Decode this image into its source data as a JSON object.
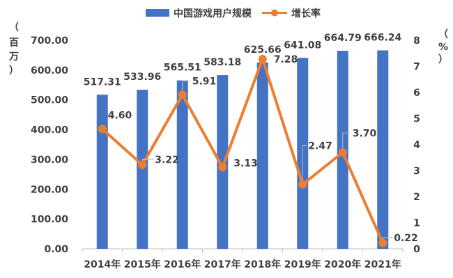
{
  "chart_data": {
    "type": "bar+line",
    "categories": [
      "2014年",
      "2015年",
      "2016年",
      "2017年",
      "2018年",
      "2019年",
      "2020年",
      "2021年"
    ],
    "series": [
      {
        "name": "中国游戏用户规模",
        "kind": "bar",
        "axis": "left",
        "color": "#4472C4",
        "values": [
          517.31,
          533.96,
          565.51,
          583.18,
          625.66,
          641.08,
          664.79,
          666.24
        ],
        "labels": [
          "517.31",
          "533.96",
          "565.51",
          "583.18",
          "625.66",
          "641.08",
          "664.79",
          "666.24"
        ]
      },
      {
        "name": "增长率",
        "kind": "line",
        "axis": "right",
        "color": "#ED7D31",
        "values": [
          4.6,
          3.22,
          5.91,
          3.13,
          7.28,
          2.47,
          3.7,
          0.22
        ],
        "labels": [
          "4.60",
          "3.22",
          "5.91",
          "3.13",
          "7.28",
          "2.47",
          "3.70",
          "0.22"
        ]
      }
    ],
    "left_axis": {
      "range": [
        0,
        700
      ],
      "ticks": [
        "0.00",
        "100.00",
        "200.00",
        "300.00",
        "400.00",
        "500.00",
        "600.00",
        "700.00"
      ],
      "unit": [
        "（",
        "百",
        "万",
        "）"
      ]
    },
    "right_axis": {
      "range": [
        0,
        8
      ],
      "ticks": [
        "0",
        "1",
        "2",
        "3",
        "4",
        "5",
        "6",
        "7",
        "8"
      ],
      "unit": [
        "（",
        "%",
        "）"
      ]
    },
    "legend_position": "top",
    "grid": false
  }
}
